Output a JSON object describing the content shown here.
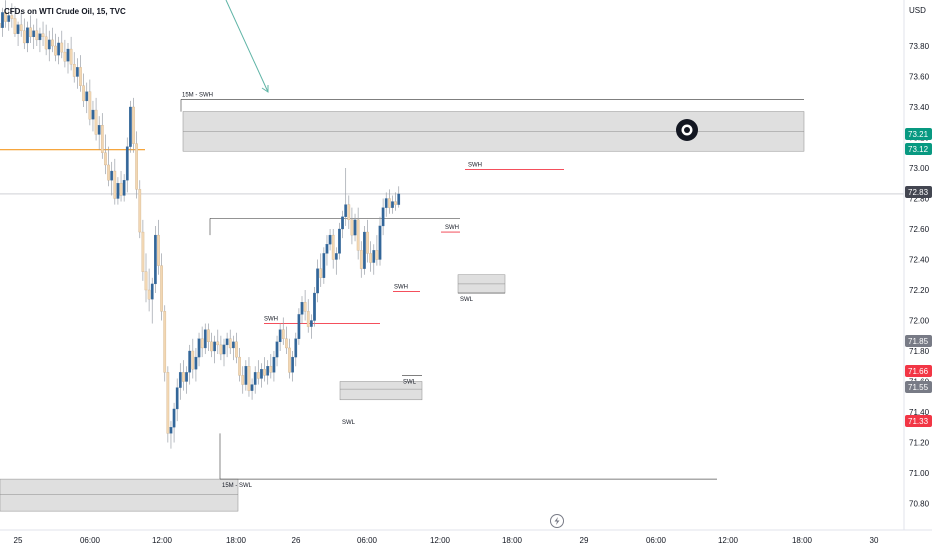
{
  "title": "CFDs on WTI Crude Oil, 15, TVC",
  "currency": "USD",
  "colors": {
    "up": "#336699",
    "down": "#f2d7b3",
    "wick": "#9aa0a8",
    "red_line": "#f23645",
    "orange_line": "#f59a23",
    "zone_fill": "#d9d9d9",
    "zone_stroke": "#8c8c8c",
    "grid_line": "#b2b5be",
    "badge_green": "#089981",
    "badge_red": "#f23645",
    "badge_gray": "#787b86",
    "badge_dark": "#434651",
    "arrow": "#5fb4a6"
  },
  "icons": {
    "eye": "eye-icon",
    "lightning": "lightning-icon"
  },
  "chart_data": {
    "type": "candlestick",
    "title": "CFDs on WTI Crude Oil, 15, TVC",
    "ylabel": "USD",
    "y_range": [
      70.7,
      74.0
    ],
    "x_ticks": [
      "25",
      "06:00",
      "12:00",
      "18:00",
      "26",
      "06:00",
      "12:00",
      "18:00",
      "29",
      "06:00",
      "12:00",
      "18:00",
      "30"
    ],
    "y_ticks": [
      "73.80",
      "73.60",
      "73.40",
      "73.20",
      "73.00",
      "72.80",
      "72.60",
      "72.40",
      "72.20",
      "72.00",
      "71.80",
      "71.60",
      "71.40",
      "71.20",
      "71.00",
      "70.80"
    ],
    "price_badges": [
      {
        "label": "73.21",
        "value": 73.21,
        "kind": "green"
      },
      {
        "label": "73.12",
        "value": 73.12,
        "kind": "green"
      },
      {
        "label": "72.83",
        "value": 72.83,
        "kind": "dark"
      },
      {
        "label": "71.85",
        "value": 71.85,
        "kind": "gray"
      },
      {
        "label": "71.66",
        "value": 71.66,
        "kind": "red"
      },
      {
        "label": "71.55",
        "value": 71.55,
        "kind": "gray"
      },
      {
        "label": "71.33",
        "value": 71.33,
        "kind": "red"
      }
    ],
    "annotations": [
      {
        "label": "15M - SWH",
        "value": 73.45
      },
      {
        "label": "SWH",
        "value": 72.99
      },
      {
        "label": "SWH",
        "value": 72.58
      },
      {
        "label": "SWH",
        "value": 72.19
      },
      {
        "label": "SWH",
        "value": 71.98
      },
      {
        "label": "SWL",
        "value": 71.64
      },
      {
        "label": "SWL",
        "value": 72.18
      },
      {
        "label": "SWL",
        "value": 71.48
      },
      {
        "label": "15M - SWL",
        "value": 70.96
      }
    ],
    "zones": [
      {
        "name": "supply-15m",
        "low": 73.11,
        "high": 73.37,
        "mid": 73.24
      },
      {
        "name": "demand-15m",
        "low": 70.75,
        "high": 70.96,
        "mid": 70.86
      },
      {
        "name": "demand-swl-1",
        "low": 71.48,
        "high": 71.6,
        "mid": 71.55
      },
      {
        "name": "demand-swl-2",
        "low": 72.18,
        "high": 72.3,
        "mid": 72.24
      }
    ],
    "levels": [
      {
        "name": "current-price",
        "value": 72.83
      },
      {
        "name": "orange-level",
        "value": 73.12
      },
      {
        "name": "swing-high-15m",
        "value": 73.45
      },
      {
        "name": "swing-low-15m",
        "value": 70.96
      },
      {
        "name": "mid-swing",
        "value": 72.67
      }
    ],
    "candles": [
      [
        73.95,
        74.05,
        73.85,
        73.96
      ],
      [
        73.96,
        74.08,
        73.9,
        74.0
      ],
      [
        74.0,
        74.1,
        73.88,
        73.95
      ],
      [
        73.95,
        74.02,
        73.86,
        73.92
      ],
      [
        73.92,
        74.05,
        73.86,
        74.02
      ],
      [
        74.02,
        74.1,
        73.92,
        73.96
      ],
      [
        73.96,
        74.05,
        73.9,
        74.0
      ],
      [
        74.0,
        74.08,
        73.92,
        73.98
      ],
      [
        73.98,
        74.06,
        73.86,
        73.88
      ],
      [
        73.88,
        73.96,
        73.8,
        73.94
      ],
      [
        73.94,
        74.02,
        73.86,
        73.9
      ],
      [
        73.9,
        73.98,
        73.78,
        73.82
      ],
      [
        73.82,
        73.96,
        73.76,
        73.92
      ],
      [
        73.92,
        74.0,
        73.82,
        73.86
      ],
      [
        73.86,
        73.94,
        73.78,
        73.9
      ],
      [
        73.9,
        73.98,
        73.8,
        73.84
      ],
      [
        73.84,
        73.92,
        73.76,
        73.88
      ],
      [
        73.88,
        73.96,
        73.8,
        73.86
      ],
      [
        73.86,
        73.94,
        73.74,
        73.78
      ],
      [
        73.78,
        73.9,
        73.7,
        73.84
      ],
      [
        73.84,
        73.92,
        73.76,
        73.8
      ],
      [
        73.8,
        73.88,
        73.7,
        73.74
      ],
      [
        73.74,
        73.86,
        73.68,
        73.82
      ],
      [
        73.82,
        73.9,
        73.72,
        73.76
      ],
      [
        73.76,
        73.84,
        73.66,
        73.7
      ],
      [
        73.7,
        73.82,
        73.62,
        73.78
      ],
      [
        73.78,
        73.86,
        73.64,
        73.68
      ],
      [
        73.68,
        73.76,
        73.56,
        73.6
      ],
      [
        73.6,
        73.72,
        73.52,
        73.66
      ],
      [
        73.66,
        73.74,
        73.5,
        73.54
      ],
      [
        73.54,
        73.62,
        73.4,
        73.44
      ],
      [
        73.44,
        73.56,
        73.36,
        73.5
      ],
      [
        73.5,
        73.58,
        73.28,
        73.32
      ],
      [
        73.32,
        73.44,
        73.24,
        73.38
      ],
      [
        73.38,
        73.46,
        73.18,
        73.22
      ],
      [
        73.22,
        73.34,
        73.12,
        73.28
      ],
      [
        73.28,
        73.36,
        73.06,
        73.1
      ],
      [
        73.1,
        73.22,
        72.96,
        73.02
      ],
      [
        73.02,
        73.14,
        72.88,
        72.92
      ],
      [
        72.92,
        73.04,
        72.82,
        72.98
      ],
      [
        72.98,
        73.06,
        72.76,
        72.8
      ],
      [
        72.8,
        72.94,
        72.76,
        72.9
      ],
      [
        72.9,
        72.98,
        72.78,
        72.82
      ],
      [
        72.82,
        72.96,
        72.78,
        72.92
      ],
      [
        72.92,
        73.2,
        72.84,
        73.14
      ],
      [
        73.14,
        73.44,
        73.1,
        73.4
      ],
      [
        73.4,
        73.46,
        73.1,
        73.16
      ],
      [
        73.16,
        73.24,
        72.8,
        72.86
      ],
      [
        72.86,
        72.92,
        72.54,
        72.58
      ],
      [
        72.58,
        72.66,
        72.26,
        72.32
      ],
      [
        72.32,
        72.44,
        72.12,
        72.2
      ],
      [
        72.2,
        72.34,
        72.06,
        72.14
      ],
      [
        72.14,
        72.28,
        71.98,
        72.24
      ],
      [
        72.24,
        72.62,
        72.18,
        72.56
      ],
      [
        72.56,
        72.66,
        72.3,
        72.36
      ],
      [
        72.36,
        72.44,
        72.0,
        72.06
      ],
      [
        72.06,
        72.1,
        71.6,
        71.66
      ],
      [
        71.66,
        71.7,
        71.2,
        71.26
      ],
      [
        71.26,
        71.34,
        71.16,
        71.3
      ],
      [
        71.3,
        71.46,
        71.2,
        71.42
      ],
      [
        71.42,
        71.62,
        71.34,
        71.56
      ],
      [
        71.56,
        71.72,
        71.48,
        71.66
      ],
      [
        71.66,
        71.74,
        71.54,
        71.6
      ],
      [
        71.6,
        71.7,
        71.52,
        71.66
      ],
      [
        71.66,
        71.84,
        71.58,
        71.8
      ],
      [
        71.8,
        71.88,
        71.62,
        71.68
      ],
      [
        71.68,
        71.82,
        71.6,
        71.76
      ],
      [
        71.76,
        71.92,
        71.7,
        71.88
      ],
      [
        71.88,
        71.96,
        71.76,
        71.82
      ],
      [
        71.82,
        71.98,
        71.78,
        71.94
      ],
      [
        71.94,
        71.98,
        71.8,
        71.86
      ],
      [
        71.86,
        71.92,
        71.76,
        71.8
      ],
      [
        71.8,
        71.9,
        71.72,
        71.86
      ],
      [
        71.86,
        71.94,
        71.78,
        71.84
      ],
      [
        71.84,
        71.9,
        71.74,
        71.78
      ],
      [
        71.78,
        71.88,
        71.7,
        71.84
      ],
      [
        71.84,
        71.92,
        71.76,
        71.88
      ],
      [
        71.88,
        71.94,
        71.78,
        71.82
      ],
      [
        71.82,
        71.9,
        71.74,
        71.86
      ],
      [
        71.86,
        71.92,
        71.72,
        71.76
      ],
      [
        71.76,
        71.82,
        71.6,
        71.64
      ],
      [
        71.64,
        71.7,
        71.52,
        71.58
      ],
      [
        71.58,
        71.74,
        71.54,
        71.7
      ],
      [
        71.7,
        71.76,
        71.5,
        71.54
      ],
      [
        71.54,
        71.62,
        71.48,
        71.58
      ],
      [
        71.58,
        71.7,
        71.52,
        71.66
      ],
      [
        71.66,
        71.74,
        71.58,
        71.62
      ],
      [
        71.62,
        71.72,
        71.56,
        71.68
      ],
      [
        71.68,
        71.76,
        71.6,
        71.64
      ],
      [
        71.64,
        71.74,
        71.58,
        71.7
      ],
      [
        71.7,
        71.78,
        71.62,
        71.66
      ],
      [
        71.66,
        71.8,
        71.6,
        71.76
      ],
      [
        71.76,
        71.9,
        71.7,
        71.86
      ],
      [
        71.86,
        71.98,
        71.8,
        71.94
      ],
      [
        71.94,
        72.02,
        71.84,
        71.88
      ],
      [
        71.88,
        71.96,
        71.78,
        71.82
      ],
      [
        71.82,
        71.88,
        71.62,
        71.66
      ],
      [
        71.66,
        71.8,
        71.6,
        71.76
      ],
      [
        71.76,
        71.92,
        71.7,
        71.88
      ],
      [
        71.88,
        72.08,
        71.84,
        72.04
      ],
      [
        72.04,
        72.16,
        71.98,
        72.12
      ],
      [
        72.12,
        72.2,
        72.0,
        72.06
      ],
      [
        72.06,
        72.14,
        71.92,
        71.96
      ],
      [
        71.96,
        72.04,
        71.88,
        72.0
      ],
      [
        72.0,
        72.22,
        71.96,
        72.18
      ],
      [
        72.18,
        72.4,
        72.12,
        72.34
      ],
      [
        72.34,
        72.44,
        72.22,
        72.28
      ],
      [
        72.28,
        72.48,
        72.24,
        72.44
      ],
      [
        72.44,
        72.56,
        72.36,
        72.5
      ],
      [
        72.5,
        72.6,
        72.46,
        72.56
      ],
      [
        72.56,
        72.6,
        72.34,
        72.4
      ],
      [
        72.4,
        72.48,
        72.3,
        72.44
      ],
      [
        72.44,
        72.64,
        72.4,
        72.6
      ],
      [
        72.6,
        72.72,
        72.54,
        72.68
      ],
      [
        72.68,
        73.0,
        72.62,
        72.76
      ],
      [
        72.76,
        72.82,
        72.6,
        72.66
      ],
      [
        72.66,
        72.74,
        72.5,
        72.56
      ],
      [
        72.56,
        72.7,
        72.52,
        72.66
      ],
      [
        72.66,
        72.74,
        72.4,
        72.46
      ],
      [
        72.46,
        72.52,
        72.28,
        72.34
      ],
      [
        72.34,
        72.62,
        72.3,
        72.58
      ],
      [
        72.58,
        72.66,
        72.38,
        72.44
      ],
      [
        72.44,
        72.52,
        72.32,
        72.38
      ],
      [
        72.38,
        72.5,
        72.3,
        72.46
      ],
      [
        72.46,
        72.56,
        72.36,
        72.4
      ],
      [
        72.4,
        72.68,
        72.36,
        72.62
      ],
      [
        72.62,
        72.8,
        72.56,
        72.74
      ],
      [
        72.74,
        72.84,
        72.68,
        72.8
      ],
      [
        72.8,
        72.86,
        72.7,
        72.74
      ],
      [
        72.74,
        72.82,
        72.7,
        72.78
      ],
      [
        72.78,
        72.84,
        72.72,
        72.76
      ],
      [
        72.76,
        72.88,
        72.74,
        72.83
      ]
    ]
  }
}
